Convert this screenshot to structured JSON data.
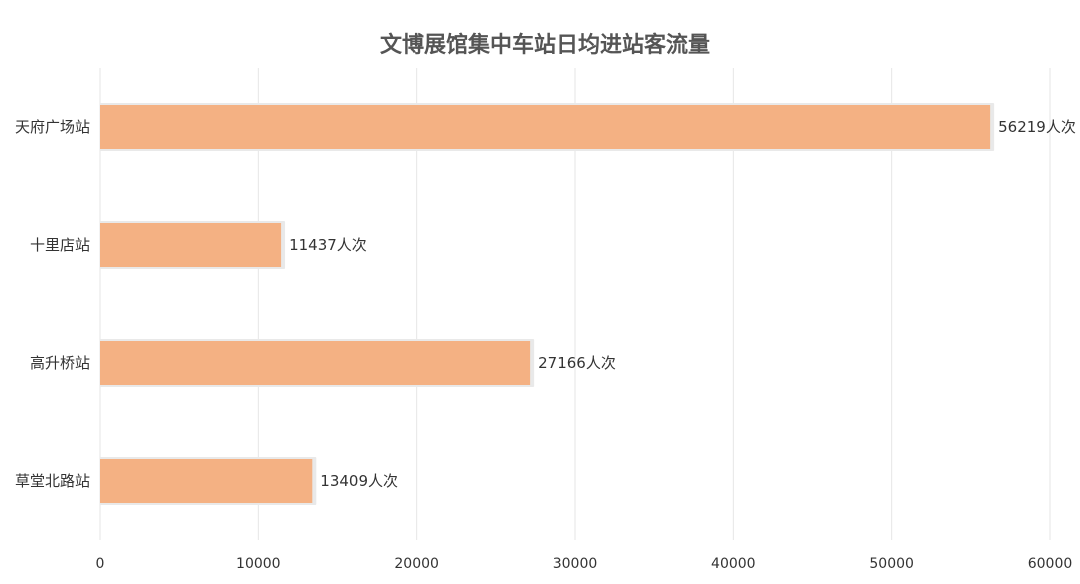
{
  "chart_data": {
    "type": "bar",
    "orientation": "horizontal",
    "title": "文博展馆集中车站日均进站客流量",
    "categories": [
      "天府广场站",
      "十里店站",
      "高升桥站",
      "草堂北路站"
    ],
    "series": [
      {
        "values": [
          56219,
          11437,
          27166,
          13409
        ],
        "color": "#f4b183"
      }
    ],
    "value_suffix": "人次",
    "xlim": [
      0,
      60000
    ],
    "x_ticks": [
      0,
      10000,
      20000,
      30000,
      40000,
      50000,
      60000
    ],
    "grid": true,
    "legend": "none"
  }
}
